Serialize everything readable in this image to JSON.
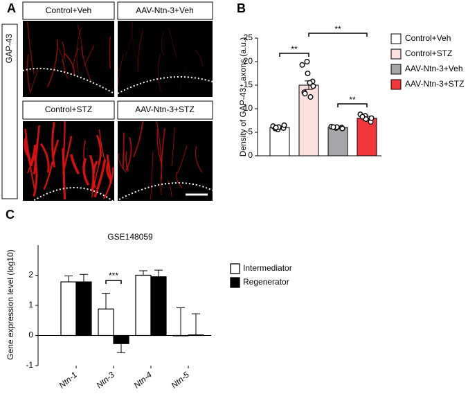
{
  "panel_a": {
    "label": "A",
    "stain": "GAP-43",
    "images": [
      "Control+Veh",
      "AAV-Ntn-3+Veh",
      "Control+STZ",
      "AAV-Ntn-3+STZ"
    ]
  },
  "chart_data": [
    {
      "type": "dotbar",
      "panel_label": "B",
      "ylabel": "Density of GAP-43⁺ axons (a.u.)",
      "categories": [
        "Control+Veh",
        "Control+STZ",
        "AAV-Ntn-3+Veh",
        "AAV-Ntn-3+STZ"
      ],
      "values": [
        6,
        15,
        6,
        8
      ],
      "errors": [
        0.3,
        0.9,
        0.2,
        0.4
      ],
      "colors": [
        "#ffffff",
        "#fde0e0",
        "#a6a6a8",
        "#f2373b"
      ],
      "points": [
        [
          6.3,
          5.6,
          6.1,
          5.9,
          6.5,
          5.8,
          6.0
        ],
        [
          19.3,
          20.0,
          17.5,
          15.8,
          14.8,
          13.5,
          13.2,
          15.5,
          12.5
        ],
        [
          6.2,
          5.9,
          6.1,
          6.0,
          5.8,
          6.1
        ],
        [
          8.8,
          8.5,
          7.8,
          7.2,
          8.0,
          8.3
        ]
      ],
      "ylim": [
        0,
        25
      ],
      "yticks": [
        0,
        5,
        10,
        15,
        20,
        25
      ],
      "annotations": [
        "**",
        "**",
        "**"
      ]
    },
    {
      "type": "grouped_bar",
      "panel_label": "C",
      "title": "GSE148059",
      "ylabel": "Gene expression level (log10)",
      "categories": [
        "Ntn-1",
        "Ntn-3",
        "Ntn-4",
        "Ntn-5"
      ],
      "series": [
        {
          "name": "Intermediator",
          "color": "#ffffff",
          "values": [
            1.78,
            0.88,
            2.0,
            0.0
          ],
          "errors": [
            0.2,
            0.52,
            0.15,
            0.92
          ]
        },
        {
          "name": "Regenerator",
          "color": "#000000",
          "values": [
            1.78,
            -0.27,
            1.95,
            0.02
          ],
          "errors": [
            0.25,
            0.3,
            0.22,
            0.7
          ]
        }
      ],
      "ylim": [
        -1,
        3
      ],
      "yticks": [
        -1,
        0,
        1,
        2
      ],
      "annotations": [
        "***"
      ]
    }
  ]
}
